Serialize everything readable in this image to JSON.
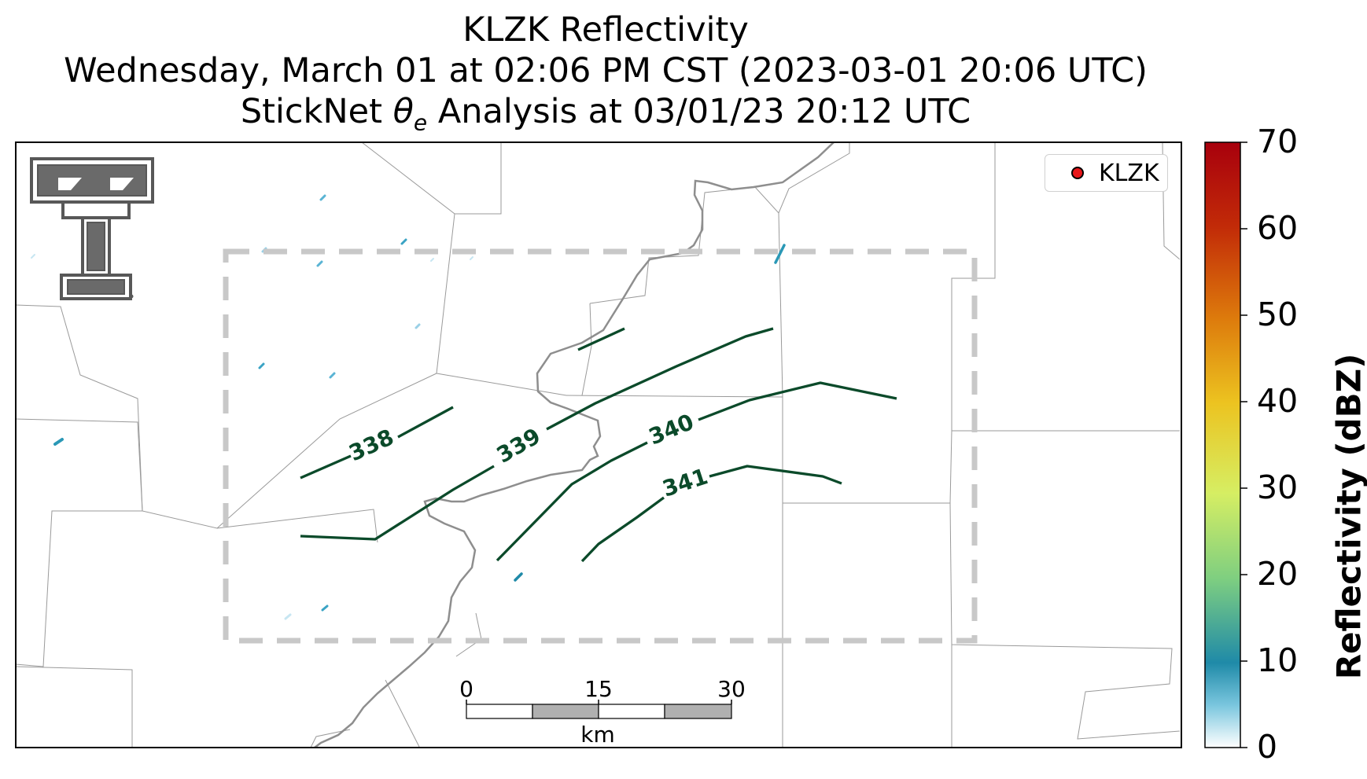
{
  "title": {
    "line1": "KLZK Reflectivity",
    "line2": "Wednesday, March 01 at 02:06 PM CST (2023-03-01 20:06 UTC)",
    "line3_prefix": "StickNet ",
    "line3_theta": "θ",
    "line3_sub": "e",
    "line3_suffix": " Analysis at 03/01/23 20:12 UTC"
  },
  "legend": {
    "label": "KLZK",
    "marker_color": "#e8171a"
  },
  "colorbar": {
    "label": "Reflectivity (dBZ)",
    "ticks": [
      "0",
      "10",
      "20",
      "30",
      "40",
      "50",
      "60",
      "70"
    ],
    "range": [
      0,
      70
    ]
  },
  "scale_bar": {
    "ticks": [
      "0",
      "15",
      "30"
    ],
    "unit": "km"
  },
  "contours": {
    "labels": [
      "338",
      "339",
      "340",
      "341"
    ],
    "color": "#0b4a2a"
  },
  "logo": {
    "name": "Texas Tech double-T logo"
  }
}
